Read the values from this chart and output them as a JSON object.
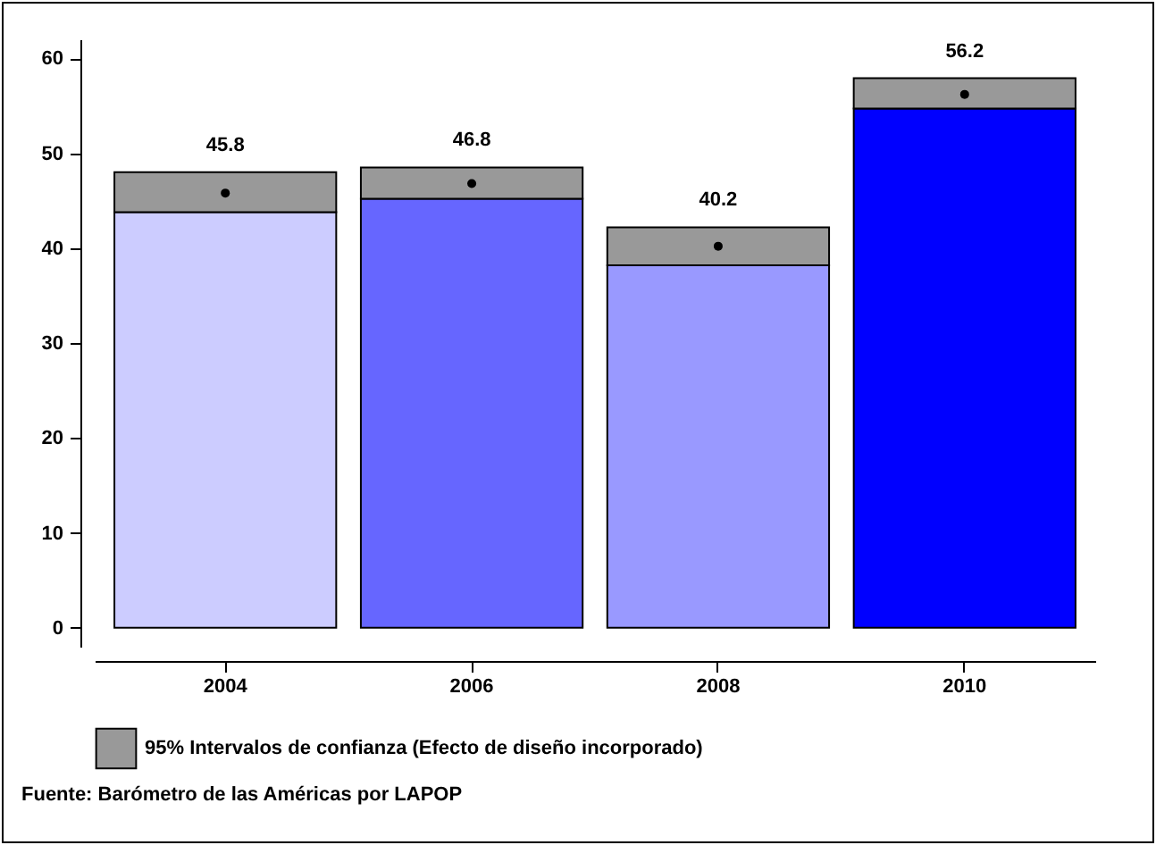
{
  "chart_data": {
    "type": "bar",
    "stacked": true,
    "categories": [
      "2004",
      "2006",
      "2008",
      "2010"
    ],
    "series": [
      {
        "colors": [
          "#ccccff",
          "#6666ff",
          "#9999ff",
          "#0000ff"
        ],
        "values": [
          43.8,
          45.2,
          38.2,
          54.7
        ]
      },
      {
        "name": "95% Intervalos de confianza (Efecto de diseño incorporado)",
        "color": "#999999",
        "values": [
          4.2,
          3.3,
          4.0,
          3.2
        ]
      },
      {
        "type": "scatter",
        "color": "#000000",
        "values": [
          45.8,
          46.8,
          40.2,
          56.2
        ],
        "value_labels": [
          "45.8",
          "46.8",
          "40.2",
          "56.2"
        ]
      }
    ],
    "marker": "circle",
    "grid": false,
    "legend": "bottom",
    "ylim": [
      -2,
      62
    ],
    "yticks": [
      0,
      10,
      20,
      30,
      40,
      50,
      60
    ],
    "annotations": [
      "Fuente: Barómetro de las Américas por LAPOP"
    ]
  }
}
